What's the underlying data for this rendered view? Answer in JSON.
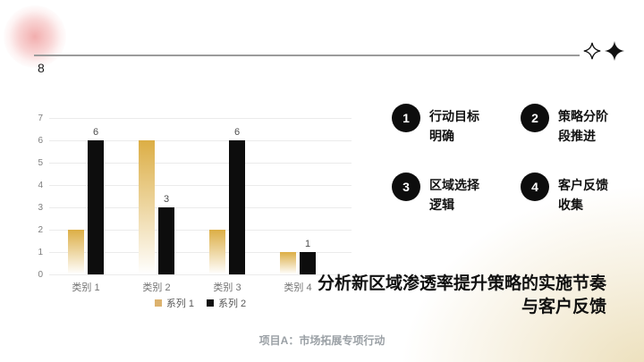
{
  "slide": {
    "page_number": "8",
    "title": "分析新区域渗透率提升策略的实施节奏与客户反馈",
    "footer": "项目A：市场拓展专项行动"
  },
  "steps": {
    "items": [
      {
        "number": "1",
        "label": "行动目标明确"
      },
      {
        "number": "2",
        "label": "策略分阶段推进"
      },
      {
        "number": "3",
        "label": "区域选择逻辑"
      },
      {
        "number": "4",
        "label": "客户反馈收集"
      }
    ]
  },
  "chart_data": {
    "type": "bar",
    "categories": [
      "类别 1",
      "类别 2",
      "类别 3",
      "类别 4"
    ],
    "series": [
      {
        "name": "系列 1",
        "values": [
          2,
          6,
          2,
          1
        ],
        "color_top": "#DCAE45",
        "color_bottom": "#FFFFFF",
        "legend_color": "#DCB26E",
        "data_labels": false
      },
      {
        "name": "系列 2",
        "values": [
          6,
          3,
          6,
          1
        ],
        "color": "#0D0D0D",
        "legend_color": "#111111",
        "data_labels": true
      }
    ],
    "ylim": [
      0,
      7
    ],
    "ytick_step": 1,
    "grid": true,
    "legend_position": "bottom"
  },
  "colors": {
    "accent_gold": "#DCAE45",
    "series2_black": "#0D0D0D",
    "blob_pink": "#EB8282",
    "corner_cream": "#ECDFBA",
    "header_line": "#9B9B9B"
  }
}
